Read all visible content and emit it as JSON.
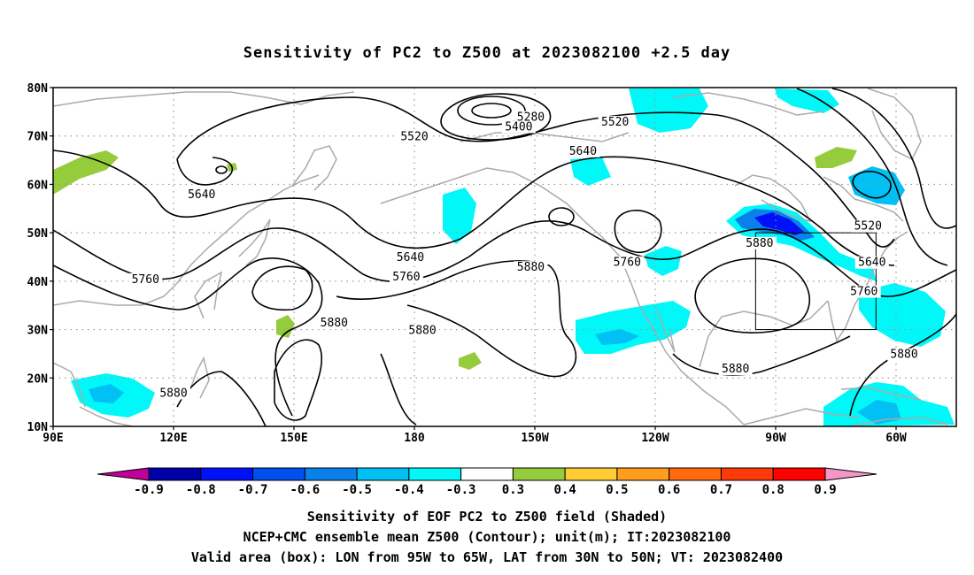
{
  "title": "Sensitivity of PC2 to Z500 at 2023082100 +2.5 day",
  "map": {
    "lat_ticks": [
      {
        "label": "80N",
        "lat": 80
      },
      {
        "label": "70N",
        "lat": 70
      },
      {
        "label": "60N",
        "lat": 60
      },
      {
        "label": "50N",
        "lat": 50
      },
      {
        "label": "40N",
        "lat": 40
      },
      {
        "label": "30N",
        "lat": 30
      },
      {
        "label": "20N",
        "lat": 20
      },
      {
        "label": "10N",
        "lat": 10
      }
    ],
    "lon_ticks": [
      {
        "label": "90E",
        "lon": 90
      },
      {
        "label": "120E",
        "lon": 120
      },
      {
        "label": "150E",
        "lon": 150
      },
      {
        "label": "180",
        "lon": 180
      },
      {
        "label": "150W",
        "lon": 210
      },
      {
        "label": "120W",
        "lon": 240
      },
      {
        "label": "90W",
        "lon": 270
      },
      {
        "label": "60W",
        "lon": 300
      }
    ],
    "lon_range": [
      90,
      315
    ],
    "lat_range": [
      10,
      80
    ],
    "grid": "dotted",
    "contour_labels": [
      {
        "text": "5280",
        "lon": 209,
        "lat": 73.5
      },
      {
        "text": "5400",
        "lon": 206,
        "lat": 71.5
      },
      {
        "text": "5520",
        "lon": 180,
        "lat": 69.5
      },
      {
        "text": "5520",
        "lon": 230,
        "lat": 72.5
      },
      {
        "text": "5640",
        "lon": 222,
        "lat": 66.5
      },
      {
        "text": "5640",
        "lon": 127,
        "lat": 57.5
      },
      {
        "text": "5640",
        "lon": 179,
        "lat": 44.5
      },
      {
        "text": "5760",
        "lon": 113,
        "lat": 40
      },
      {
        "text": "5760",
        "lon": 178,
        "lat": 40.5
      },
      {
        "text": "5760",
        "lon": 233,
        "lat": 43.5
      },
      {
        "text": "5880",
        "lon": 209,
        "lat": 42.5
      },
      {
        "text": "5880",
        "lon": 266,
        "lat": 47.5
      },
      {
        "text": "5880",
        "lon": 160,
        "lat": 31
      },
      {
        "text": "5880",
        "lon": 182,
        "lat": 29.5
      },
      {
        "text": "5880",
        "lon": 120,
        "lat": 16.5
      },
      {
        "text": "5880",
        "lon": 260,
        "lat": 21.5
      },
      {
        "text": "5880",
        "lon": 302,
        "lat": 24.5
      },
      {
        "text": "5520",
        "lon": 293,
        "lat": 51
      },
      {
        "text": "5640",
        "lon": 294,
        "lat": 43.5
      },
      {
        "text": "5760",
        "lon": 292,
        "lat": 37.5
      }
    ],
    "valid_box": {
      "lon": [
        265,
        295
      ],
      "lat": [
        30,
        50
      ]
    }
  },
  "colorbar": {
    "colors": [
      "#c0009a",
      "#0000a8",
      "#0010f8",
      "#0050f0",
      "#0a80ea",
      "#00c0f4",
      "#00f8f8",
      "#ffffff",
      "#94cc3c",
      "#ffcc33",
      "#ff9d1c",
      "#ff6a0d",
      "#ff3a0a",
      "#ff0000",
      "#f596c8"
    ],
    "labels": [
      "-0.9",
      "-0.8",
      "-0.7",
      "-0.6",
      "-0.5",
      "-0.4",
      "-0.3",
      "0.3",
      "0.4",
      "0.5",
      "0.6",
      "0.7",
      "0.8",
      "0.9"
    ]
  },
  "caption": {
    "line1": "Sensitivity of EOF PC2 to Z500 field (Shaded)",
    "line2": "NCEP+CMC ensemble mean Z500 (Contour); unit(m); IT:2023082100",
    "line3": "Valid area (box): LON from 95W to 65W, LAT from 30N to 50N; VT: 2023082400"
  }
}
